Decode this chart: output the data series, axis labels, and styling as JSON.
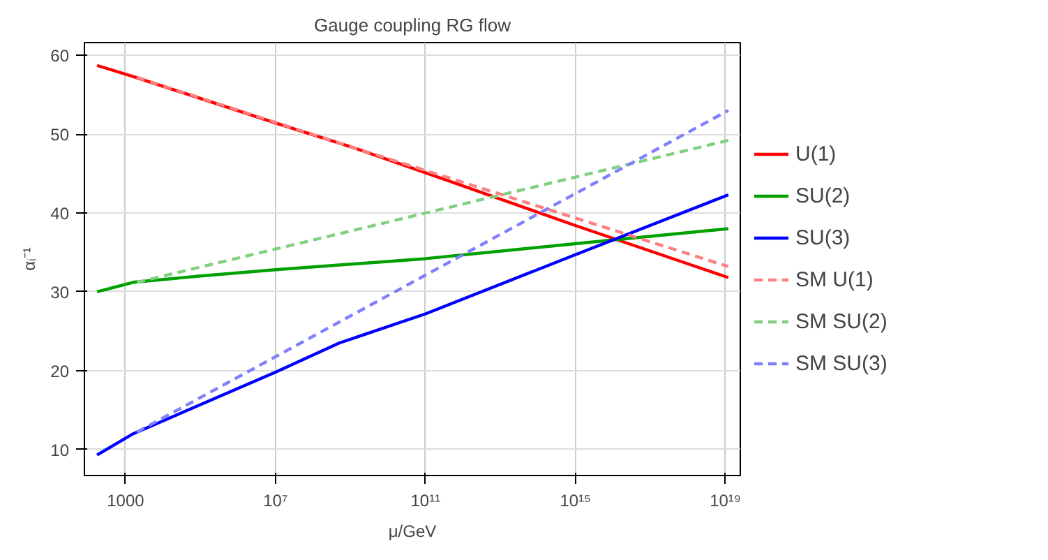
{
  "chart_data": {
    "type": "line",
    "title": "Gauge coupling RG flow",
    "xlabel": "μ/GeV",
    "ylabel": "αᵢ⁻¹",
    "log": "x",
    "xlim": [
      80.0,
      2.5e+19
    ],
    "ylim": [
      6.7,
      61.6
    ],
    "xticks": [
      {
        "value": 1000,
        "label": "1000"
      },
      {
        "value": 10000000.0,
        "label": "10⁷"
      },
      {
        "value": 100000000000.0,
        "label": "10¹¹"
      },
      {
        "value": 1000000000000000.0,
        "label": "10¹⁵"
      },
      {
        "value": 1e+19,
        "label": "10¹⁹"
      }
    ],
    "yticks": [
      10,
      20,
      30,
      40,
      50,
      60
    ],
    "grid": true,
    "legend": "right",
    "series": [
      {
        "name": "U(1)",
        "color": "#ff0000",
        "line_style": "solid",
        "x": [
          174.0,
          1600.0,
          10000000.0,
          1000000000.0,
          100000000000.0,
          1000000000000000.0,
          1.2e+19
        ],
        "values": [
          58.7,
          57.3,
          51.4,
          48.4,
          45.1,
          38.4,
          31.8
        ]
      },
      {
        "name": "SU(2)",
        "color": "#00a000",
        "line_style": "solid",
        "x": [
          174.0,
          1600.0,
          100000.0,
          10000000.0,
          100000000000.0,
          1000000000000000.0,
          1.2e+19
        ],
        "values": [
          30.0,
          31.2,
          32.0,
          32.8,
          34.2,
          36.1,
          38.0
        ]
      },
      {
        "name": "SU(3)",
        "color": "#0000ff",
        "line_style": "solid",
        "x": [
          174.0,
          1600.0,
          10000000.0,
          500000000.0,
          100000000000.0,
          1000000000000000.0,
          1.2e+19
        ],
        "values": [
          9.3,
          12.0,
          19.8,
          23.5,
          27.2,
          34.7,
          42.3
        ]
      },
      {
        "name": "SM U(1)",
        "color": "#ff8080",
        "line_style": "dashed",
        "x": [
          2000.0,
          1000000000.0,
          1.2e+19
        ],
        "values": [
          57.2,
          48.4,
          33.2
        ]
      },
      {
        "name": "SM SU(2)",
        "color": "#80d080",
        "line_style": "dashed",
        "x": [
          2000.0,
          1.2e+19
        ],
        "values": [
          31.2,
          49.2
        ]
      },
      {
        "name": "SM SU(3)",
        "color": "#8080ff",
        "line_style": "dashed",
        "x": [
          2000.0,
          1.2e+19
        ],
        "values": [
          12.2,
          53.0
        ]
      }
    ]
  }
}
